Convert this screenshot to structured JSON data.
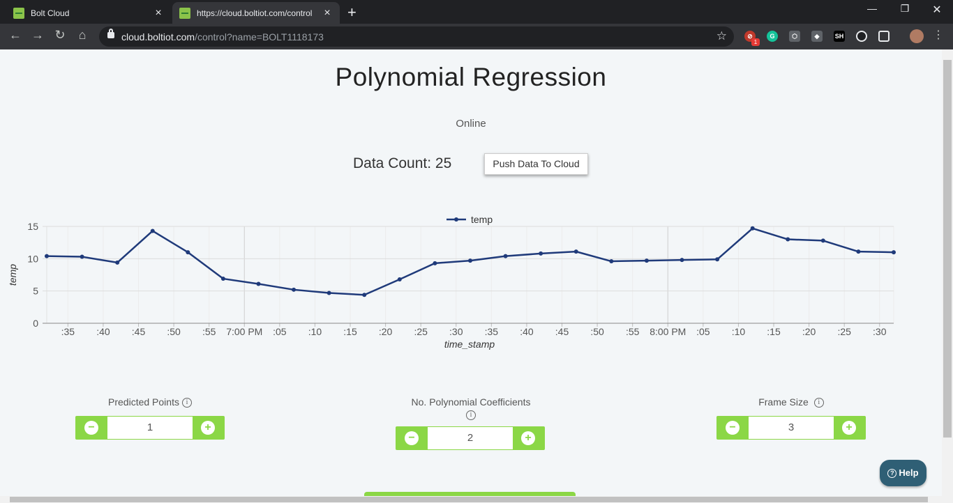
{
  "browser": {
    "tabs": [
      {
        "title": "Bolt Cloud",
        "active": false
      },
      {
        "title": "https://cloud.boltiot.com/control",
        "active": true
      }
    ],
    "url_host": "cloud.boltiot.com",
    "url_path": "/control?name=BOLT1118173",
    "extension_badge": "1",
    "extensions": [
      "block-icon",
      "grammarly-icon",
      "cube-icon",
      "wallet-icon",
      "sh-icon",
      "github-icon",
      "pip-icon",
      "profile-avatar"
    ]
  },
  "page": {
    "title": "Polynomial Regression",
    "status": "Online",
    "data_count_label": "Data Count: 25",
    "push_button": "Push Data To Cloud",
    "help_label": "Help"
  },
  "controls": [
    {
      "label": "Predicted Points",
      "value": "1"
    },
    {
      "label": "No. Polynomial Coefficients",
      "value": "2"
    },
    {
      "label": "Frame Size",
      "value": "3"
    }
  ],
  "chart_data": {
    "type": "line",
    "title": "",
    "xlabel": "time_stamp",
    "ylabel": "temp",
    "ylim": [
      0,
      15
    ],
    "yticks": [
      0,
      5,
      10,
      15
    ],
    "legend": "top-center",
    "grid": true,
    "x_tick_labels": [
      ":35",
      ":40",
      ":45",
      ":50",
      ":55",
      "7:00 PM",
      ":05",
      ":10",
      ":15",
      ":20",
      ":25",
      ":30",
      ":35",
      ":40",
      ":45",
      ":50",
      ":55",
      "8:00 PM",
      ":05",
      ":10",
      ":15",
      ":20",
      ":25",
      ":30"
    ],
    "x_start_time": "18:32",
    "x_end_time": "20:32",
    "series": [
      {
        "name": "temp",
        "color": "#1f3a7a",
        "x": [
          "18:32",
          "18:37",
          "18:42",
          "18:47",
          "18:52",
          "18:57",
          "19:02",
          "19:07",
          "19:12",
          "19:17",
          "19:22",
          "19:27",
          "19:32",
          "19:37",
          "19:42",
          "19:47",
          "19:52",
          "19:57",
          "20:02",
          "20:07",
          "20:12",
          "20:17",
          "20:22",
          "20:27",
          "20:32"
        ],
        "values": [
          10.4,
          10.3,
          9.4,
          14.3,
          11.0,
          6.9,
          6.1,
          5.2,
          4.7,
          4.4,
          6.8,
          9.3,
          9.7,
          10.4,
          10.8,
          11.1,
          9.6,
          9.7,
          9.8,
          9.9,
          14.7,
          13.0,
          12.8,
          11.1,
          11.0
        ]
      }
    ]
  }
}
